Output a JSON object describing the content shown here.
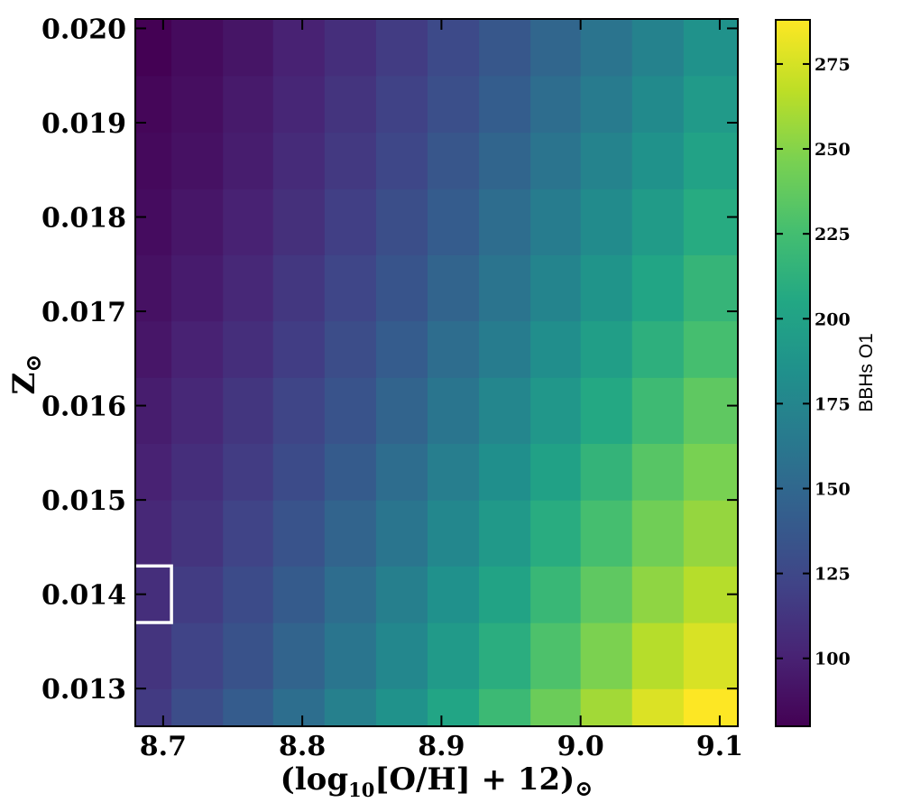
{
  "chart_data": {
    "type": "heatmap",
    "title": "",
    "xlabel": "(log10[O/H] + 12)⊙",
    "xlabel_parts": {
      "open": "(log",
      "sub1": "10",
      "mid": "[O/H] + 12)",
      "sub2": "⊙"
    },
    "ylabel": "Z⊙",
    "ylabel_parts": {
      "main": "Z",
      "sub": "⊙"
    },
    "x_tick_labels": [
      "8.7",
      "8.8",
      "8.9",
      "9.0",
      "9.1"
    ],
    "x_ticks": [
      8.7,
      8.8,
      8.9,
      9.0,
      9.1
    ],
    "y_tick_labels": [
      "0.013",
      "0.014",
      "0.015",
      "0.016",
      "0.017",
      "0.018",
      "0.019",
      "0.020"
    ],
    "y_ticks": [
      0.013,
      0.014,
      0.015,
      0.016,
      0.017,
      0.018,
      0.019,
      0.02
    ],
    "xlim": [
      8.68,
      9.113
    ],
    "ylim": [
      0.0126,
      0.0201
    ],
    "colormap": "viridis",
    "colorbar": {
      "label": "BBHs O1",
      "range": [
        80,
        288
      ],
      "tick_labels": [
        "100",
        "125",
        "150",
        "175",
        "200",
        "225",
        "250",
        "275"
      ],
      "ticks": [
        100,
        125,
        150,
        175,
        200,
        225,
        250,
        275
      ]
    },
    "x_edges": [
      8.68,
      8.706,
      8.743,
      8.779,
      8.816,
      8.853,
      8.89,
      8.927,
      8.964,
      9.0,
      9.037,
      9.074,
      9.113
    ],
    "y_edges": [
      0.0126,
      0.013,
      0.0137,
      0.0143,
      0.015,
      0.0156,
      0.0163,
      0.0169,
      0.0176,
      0.0183,
      0.0189,
      0.0195,
      0.0201
    ],
    "values": [
      [
        116,
        129,
        141,
        155,
        170,
        186,
        203,
        221,
        241,
        259,
        277,
        288
      ],
      [
        112,
        122,
        133,
        147,
        161,
        176,
        193,
        210,
        229,
        247,
        265,
        276
      ],
      [
        108,
        117,
        128,
        140,
        154,
        169,
        185,
        201,
        219,
        236,
        253,
        265
      ],
      [
        104,
        112,
        122,
        134,
        147,
        161,
        176,
        192,
        209,
        226,
        243,
        255
      ],
      [
        100,
        108,
        117,
        128,
        140,
        154,
        168,
        183,
        199,
        216,
        233,
        246
      ],
      [
        97,
        104,
        113,
        123,
        134,
        147,
        161,
        175,
        190,
        206,
        222,
        236
      ],
      [
        93,
        100,
        108,
        118,
        129,
        141,
        154,
        167,
        182,
        197,
        212,
        226
      ],
      [
        90,
        96,
        104,
        114,
        124,
        135,
        147,
        160,
        174,
        188,
        203,
        217
      ],
      [
        87,
        93,
        100,
        109,
        119,
        130,
        141,
        154,
        167,
        180,
        194,
        208
      ],
      [
        85,
        90,
        97,
        106,
        115,
        125,
        136,
        148,
        160,
        173,
        186,
        200
      ],
      [
        83,
        88,
        95,
        103,
        112,
        121,
        131,
        142,
        154,
        166,
        179,
        193
      ],
      [
        80,
        86,
        92,
        100,
        108,
        117,
        127,
        137,
        149,
        160,
        172,
        186
      ]
    ],
    "highlight_cell": {
      "row": 2,
      "col": 0,
      "color": "#ffffff"
    },
    "grid": false
  }
}
